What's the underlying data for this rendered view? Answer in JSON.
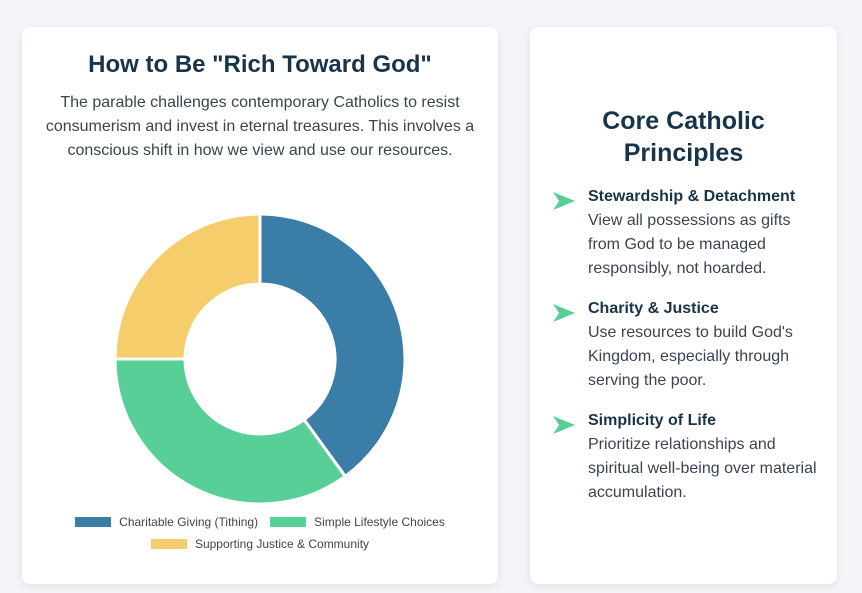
{
  "left_card": {
    "title": "How to Be \"Rich Toward God\"",
    "description": "The parable challenges contemporary Catholics to resist consumerism and invest in eternal treasures. This involves a conscious shift in how we view and use our resources."
  },
  "chart_data": {
    "type": "pie",
    "variant": "doughnut",
    "categories": [
      "Charitable Giving (Tithing)",
      "Simple Lifestyle Choices",
      "Supporting Justice & Community"
    ],
    "values": [
      40,
      35,
      25
    ],
    "colors": [
      "#3a7ea8",
      "#57cf97",
      "#f5cd6b"
    ],
    "legend_position": "bottom"
  },
  "right_card": {
    "title_line1": "Core Catholic",
    "title_line2": "Principles",
    "principles": [
      {
        "icon": "arrow-right-icon",
        "heading": "Stewardship & Detachment",
        "text": "View all possessions as gifts from God to be managed responsibly, not hoarded."
      },
      {
        "icon": "arrow-right-icon",
        "heading": "Charity & Justice",
        "text": "Use resources to build God's Kingdom, especially through serving the poor."
      },
      {
        "icon": "arrow-right-icon",
        "heading": "Simplicity of Life",
        "text": "Prioritize relationships and spiritual well-being over material accumulation."
      }
    ],
    "icon_color": "#57cf97"
  }
}
